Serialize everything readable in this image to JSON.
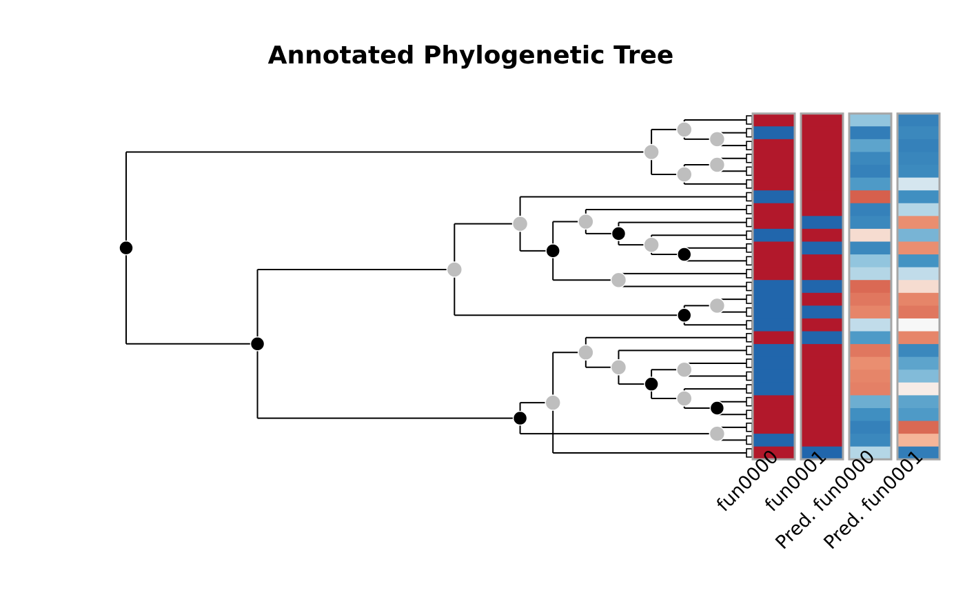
{
  "title": "Annotated Phylogenetic Tree",
  "columns": [
    {
      "label": "fun0000"
    },
    {
      "label": "fun0001"
    },
    {
      "label": "Pred. fun0000"
    },
    {
      "label": "Pred. fun0001"
    }
  ],
  "colors": {
    "node_inner": "#000000",
    "node_duplication": "#bebebe",
    "panel_border": "#a6a6a6",
    "heat_high": "#b2182b",
    "heat_low": "#2166ac"
  },
  "tree": {
    "nodes": [
      {
        "id": "root",
        "depth": 0,
        "children": [
          "A",
          "B"
        ],
        "marker": "black"
      },
      {
        "id": "A",
        "depth": 16,
        "children": [
          "A1",
          "A2"
        ],
        "marker": "gray"
      },
      {
        "id": "A1",
        "depth": 17,
        "children": [
          "t0",
          "A11"
        ],
        "marker": "gray"
      },
      {
        "id": "A11",
        "depth": 18,
        "children": [
          "t1",
          "t2"
        ],
        "marker": "gray"
      },
      {
        "id": "A2",
        "depth": 17,
        "children": [
          "A21",
          "t5"
        ],
        "marker": "gray"
      },
      {
        "id": "A21",
        "depth": 18,
        "children": [
          "t3",
          "t4"
        ],
        "marker": "gray"
      },
      {
        "id": "B",
        "depth": 4,
        "children": [
          "B1",
          "B2"
        ],
        "marker": "black"
      },
      {
        "id": "B1",
        "depth": 10,
        "children": [
          "B11",
          "B12"
        ],
        "marker": "gray"
      },
      {
        "id": "B11",
        "depth": 12,
        "children": [
          "t6",
          "B111"
        ],
        "marker": "gray"
      },
      {
        "id": "B111",
        "depth": 13,
        "children": [
          "B1111",
          "B1112"
        ],
        "marker": "black"
      },
      {
        "id": "B1111",
        "depth": 14,
        "children": [
          "t7",
          "B11111"
        ],
        "marker": "gray"
      },
      {
        "id": "B11111",
        "depth": 15,
        "children": [
          "t8",
          "B111111"
        ],
        "marker": "black"
      },
      {
        "id": "B111111",
        "depth": 16,
        "children": [
          "t9",
          "B1111111"
        ],
        "marker": "gray"
      },
      {
        "id": "B1111111",
        "depth": 17,
        "children": [
          "t10",
          "t11"
        ],
        "marker": "black"
      },
      {
        "id": "B1112",
        "depth": 15,
        "children": [
          "t12",
          "t13"
        ],
        "marker": "gray"
      },
      {
        "id": "B12",
        "depth": 17,
        "children": [
          "B121",
          "t16"
        ],
        "marker": "black"
      },
      {
        "id": "B121",
        "depth": 18,
        "children": [
          "t14",
          "t15"
        ],
        "marker": "gray"
      },
      {
        "id": "B2",
        "depth": 12,
        "children": [
          "B21",
          "B22"
        ],
        "marker": "black"
      },
      {
        "id": "B21",
        "depth": 13,
        "children": [
          "B211",
          "t26"
        ],
        "marker": "gray"
      },
      {
        "id": "B211",
        "depth": 14,
        "children": [
          "t17",
          "B2111"
        ],
        "marker": "gray"
      },
      {
        "id": "B2111",
        "depth": 15,
        "children": [
          "t18",
          "B21111"
        ],
        "marker": "gray"
      },
      {
        "id": "B21111",
        "depth": 16,
        "children": [
          "B211111",
          "B211112"
        ],
        "marker": "black"
      },
      {
        "id": "B211111",
        "depth": 17,
        "children": [
          "t19",
          "t20"
        ],
        "marker": "gray"
      },
      {
        "id": "B211112",
        "depth": 17,
        "children": [
          "t21",
          "B2111121"
        ],
        "marker": "gray"
      },
      {
        "id": "B2111121",
        "depth": 18,
        "children": [
          "t22",
          "t23"
        ],
        "marker": "black"
      },
      {
        "id": "B22",
        "depth": 18,
        "children": [
          "t24",
          "t25"
        ],
        "marker": "gray"
      }
    ],
    "tips": [
      "t0",
      "t1",
      "t2",
      "t3",
      "t4",
      "t5",
      "t6",
      "t7",
      "t8",
      "t9",
      "t10",
      "t11",
      "t12",
      "t13",
      "t14",
      "t15",
      "t16",
      "t17",
      "t18",
      "t19",
      "t20",
      "t21",
      "t22",
      "t23",
      "t24",
      "t25",
      "t26"
    ]
  },
  "heatmap": {
    "fun0000": [
      1,
      0,
      1,
      1,
      1,
      1,
      0,
      1,
      1,
      0,
      1,
      1,
      1,
      0,
      0,
      0,
      0,
      1,
      0,
      0,
      0,
      0,
      1,
      1,
      1,
      0,
      1
    ],
    "fun0001": [
      1,
      1,
      1,
      1,
      1,
      1,
      1,
      1,
      0,
      1,
      0,
      1,
      1,
      0,
      1,
      0,
      1,
      0,
      1,
      1,
      1,
      1,
      1,
      1,
      1,
      1,
      0
    ],
    "pred_fun0000": [
      0.35,
      0.1,
      0.25,
      0.15,
      0.12,
      0.22,
      0.8,
      0.12,
      0.15,
      0.55,
      0.15,
      0.35,
      0.4,
      0.78,
      0.75,
      0.72,
      0.42,
      0.22,
      0.75,
      0.7,
      0.72,
      0.73,
      0.28,
      0.18,
      0.12,
      0.15,
      0.4
    ],
    "pred_fun0001": [
      0.12,
      0.15,
      0.12,
      0.14,
      0.16,
      0.45,
      0.18,
      0.4,
      0.7,
      0.3,
      0.7,
      0.2,
      0.42,
      0.55,
      0.72,
      0.75,
      0.5,
      0.72,
      0.15,
      0.25,
      0.32,
      0.52,
      0.25,
      0.22,
      0.78,
      0.62,
      0.1
    ]
  }
}
